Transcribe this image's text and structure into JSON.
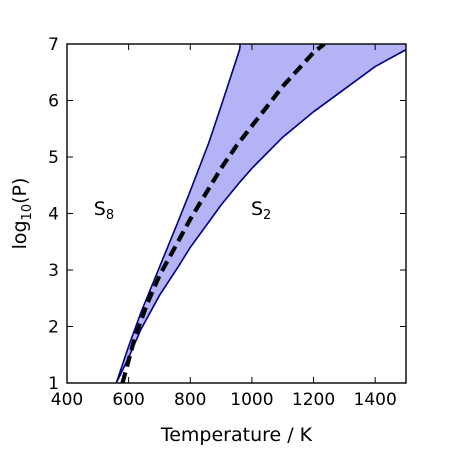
{
  "chart_data": {
    "type": "area",
    "xlabel": "Temperature / K",
    "ylabel": {
      "base": "log",
      "sub": "10",
      "tail": "(P)"
    },
    "xlim": [
      400,
      1500
    ],
    "ylim": [
      1,
      7
    ],
    "xticks": [
      400,
      600,
      800,
      1000,
      1200,
      1400
    ],
    "yticks": [
      1,
      2,
      3,
      4,
      5,
      6,
      7
    ],
    "grid": false,
    "colors": {
      "fill": "#b3b3f5",
      "boundary": "#000080",
      "dashed": "#000000"
    },
    "band_upper": {
      "x": [
        560,
        600,
        640,
        700,
        760,
        800,
        860,
        900,
        960
      ],
      "y": [
        1.0,
        1.65,
        2.25,
        3.05,
        3.85,
        4.4,
        5.25,
        5.9,
        6.9
      ]
    },
    "band_lower": {
      "x": [
        560,
        600,
        640,
        700,
        760,
        800,
        860,
        900,
        960,
        1000,
        1100,
        1200,
        1300,
        1400,
        1500
      ],
      "y": [
        1.0,
        1.45,
        1.95,
        2.55,
        3.05,
        3.4,
        3.85,
        4.15,
        4.55,
        4.8,
        5.35,
        5.8,
        6.2,
        6.6,
        6.9
      ]
    },
    "band_top_edge_x": [
      960,
      1500
    ],
    "dashed_line": {
      "x": [
        580,
        620,
        660,
        700,
        760,
        800,
        850,
        900,
        950,
        1000,
        1050,
        1100,
        1150,
        1200,
        1235
      ],
      "y": [
        1.0,
        1.8,
        2.4,
        2.9,
        3.5,
        3.9,
        4.35,
        4.8,
        5.2,
        5.55,
        5.9,
        6.25,
        6.55,
        6.85,
        7.0
      ]
    },
    "annotations": [
      {
        "base": "S",
        "sub": "8",
        "x": 520,
        "y": 4.1
      },
      {
        "base": "S",
        "sub": "2",
        "x": 1030,
        "y": 4.1
      }
    ]
  }
}
